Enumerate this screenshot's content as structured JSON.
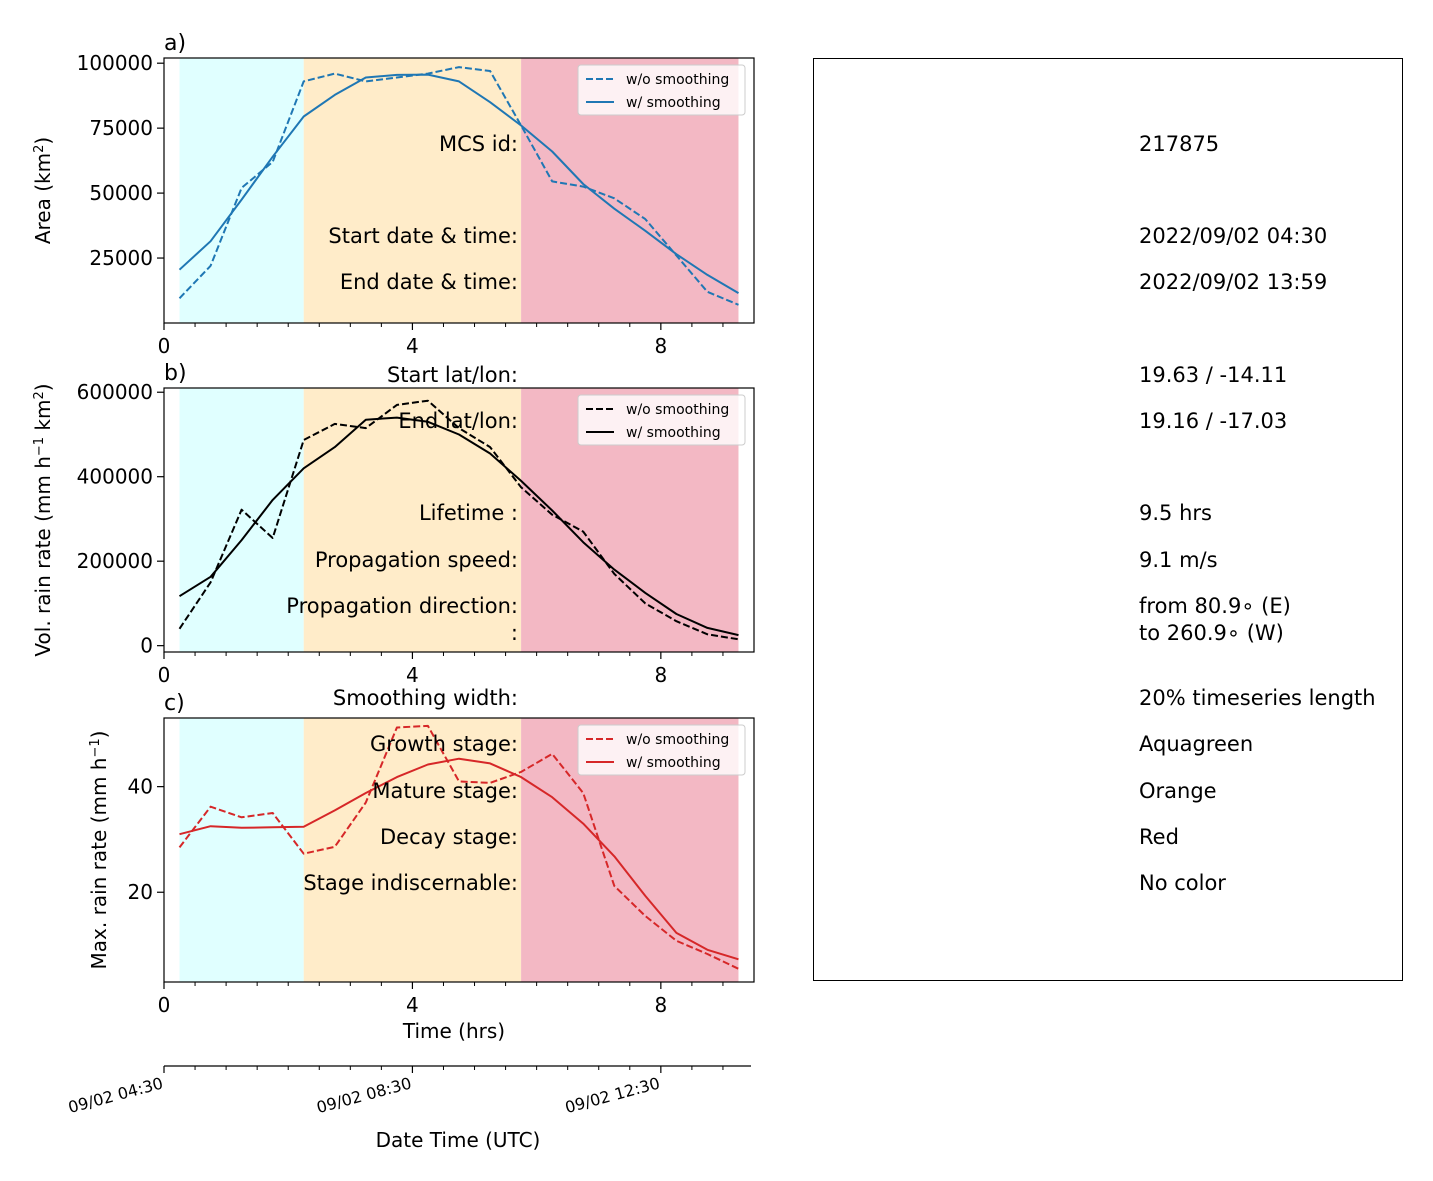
{
  "colors": {
    "growth": "#e0ffff",
    "mature": "#ffecc9",
    "decay": "#f3b8c4",
    "panel_a": "#1f77b4",
    "panel_b": "#000000",
    "panel_c": "#d62728"
  },
  "stage_spans_hrs": {
    "growth": [
      0.25,
      2.25
    ],
    "mature": [
      2.25,
      5.75
    ],
    "decay": [
      5.75,
      9.25
    ]
  },
  "chart_data": [
    {
      "type": "line",
      "panel_label": "a)",
      "ylabel": "Area  (km²)",
      "ylabel_base": "Area  (km",
      "ylabel_sup": "2",
      "ylabel_end": ")",
      "xlim": [
        0,
        9.5
      ],
      "ylim": [
        0,
        102000
      ],
      "yticks": [
        25000,
        50000,
        75000,
        100000
      ],
      "xticks": [
        0,
        4,
        8
      ],
      "legend": "top-right",
      "x": [
        0.25,
        0.75,
        1.25,
        1.75,
        2.25,
        2.75,
        3.25,
        3.75,
        4.25,
        4.75,
        5.25,
        5.75,
        6.25,
        6.75,
        7.25,
        7.75,
        8.25,
        8.75,
        9.25
      ],
      "series": [
        {
          "name": "w/o smoothing",
          "style": "dashed",
          "values": [
            9500,
            22000,
            52000,
            62000,
            93000,
            96000,
            93000,
            94500,
            96000,
            98500,
            97000,
            76000,
            54500,
            52500,
            48000,
            40000,
            26000,
            12000,
            7000
          ]
        },
        {
          "name": "w/ smoothing",
          "style": "solid",
          "values": [
            20500,
            31500,
            47500,
            64000,
            79500,
            87800,
            94500,
            95500,
            95600,
            93000,
            85000,
            76000,
            66000,
            53500,
            44000,
            35500,
            26500,
            18500,
            11500
          ]
        }
      ]
    },
    {
      "type": "line",
      "panel_label": "b)",
      "ylabel": "Vol. rain rate (mm h⁻¹ km²)",
      "ylabel_base": "Vol. rain rate (mm h",
      "ylabel_sup1": "−1",
      "ylabel_mid": " km",
      "ylabel_sup": "2",
      "ylabel_end": ")",
      "xlim": [
        0,
        9.5
      ],
      "ylim": [
        -15000,
        610000
      ],
      "yticks": [
        0,
        200000,
        400000,
        600000
      ],
      "xticks": [
        0,
        4,
        8
      ],
      "legend": "top-right",
      "x": [
        0.25,
        0.75,
        1.25,
        1.75,
        2.25,
        2.75,
        3.25,
        3.75,
        4.25,
        4.75,
        5.25,
        5.75,
        6.25,
        6.75,
        7.25,
        7.75,
        8.25,
        8.75,
        9.25
      ],
      "series": [
        {
          "name": "w/o smoothing",
          "style": "dashed",
          "values": [
            40000,
            150000,
            322000,
            255000,
            487000,
            525000,
            515000,
            570000,
            580000,
            515000,
            470000,
            375000,
            310000,
            270000,
            170000,
            100000,
            58000,
            27000,
            15000
          ]
        },
        {
          "name": "w/ smoothing",
          "style": "solid",
          "values": [
            117000,
            163000,
            250000,
            345000,
            420000,
            470000,
            535000,
            540000,
            530000,
            500000,
            455000,
            390000,
            320000,
            245000,
            180000,
            125000,
            75000,
            42000,
            25000
          ]
        }
      ]
    },
    {
      "type": "line",
      "panel_label": "c)",
      "ylabel": "Max. rain rate  (mm h⁻¹)",
      "ylabel_base": "Max. rain rate  (mm h",
      "ylabel_sup": "−1",
      "ylabel_end": ")",
      "xlim": [
        0,
        9.5
      ],
      "ylim": [
        3,
        53
      ],
      "yticks": [
        20,
        40
      ],
      "xticks": [
        0,
        4,
        8
      ],
      "xlabel": "Time (hrs)",
      "legend": "top-right",
      "x": [
        0.25,
        0.75,
        1.25,
        1.75,
        2.25,
        2.75,
        3.25,
        3.75,
        4.25,
        4.75,
        5.25,
        5.75,
        6.25,
        6.75,
        7.25,
        7.75,
        8.25,
        8.75,
        9.25
      ],
      "series": [
        {
          "name": "w/o smoothing",
          "style": "dashed",
          "values": [
            28.5,
            36.2,
            34.2,
            35.0,
            27.3,
            28.6,
            37.0,
            51.2,
            51.5,
            41.0,
            40.7,
            42.8,
            46.2,
            38.8,
            21.2,
            15.5,
            10.8,
            8.3,
            5.5
          ]
        },
        {
          "name": "w/ smoothing",
          "style": "solid",
          "values": [
            31.0,
            32.5,
            32.2,
            32.3,
            32.4,
            35.5,
            38.8,
            41.8,
            44.2,
            45.3,
            44.4,
            41.8,
            38.0,
            33.0,
            26.8,
            19.3,
            12.3,
            9.1,
            7.3
          ]
        }
      ]
    }
  ],
  "date_axis": {
    "xlabel": "Date Time (UTC)",
    "ticks": [
      {
        "hrs": 0,
        "label": "09/02 04:30"
      },
      {
        "hrs": 4,
        "label": "09/02 08:30"
      },
      {
        "hrs": 8,
        "label": "09/02 12:30"
      }
    ]
  },
  "info": [
    {
      "label": "MCS id:",
      "value": "217875"
    },
    {
      "label": "Start date & time:",
      "value": "2022/09/02 04:30"
    },
    {
      "label": "End date & time:",
      "value": "2022/09/02 13:59"
    },
    {
      "label": "Start lat/lon:",
      "value": "19.63 / -14.11"
    },
    {
      "label": "End lat/lon:",
      "value": "19.16 / -17.03"
    },
    {
      "label": "Lifetime :",
      "value": "9.5 hrs"
    },
    {
      "label": "Propagation speed:",
      "value": "9.1 m/s"
    },
    {
      "label": "Propagation direction:",
      "value": "from  80.9∘ (E)"
    },
    {
      "label": ":",
      "value": "to   260.9∘ (W)"
    },
    {
      "label": "Smoothing width:",
      "value": "20% timeseries length"
    },
    {
      "label": "Growth stage:",
      "value": "Aquagreen"
    },
    {
      "label": "Mature stage:",
      "value": "Orange"
    },
    {
      "label": "Decay stage:",
      "value": "Red"
    },
    {
      "label": "Stage indiscernable:",
      "value": "No color"
    }
  ]
}
